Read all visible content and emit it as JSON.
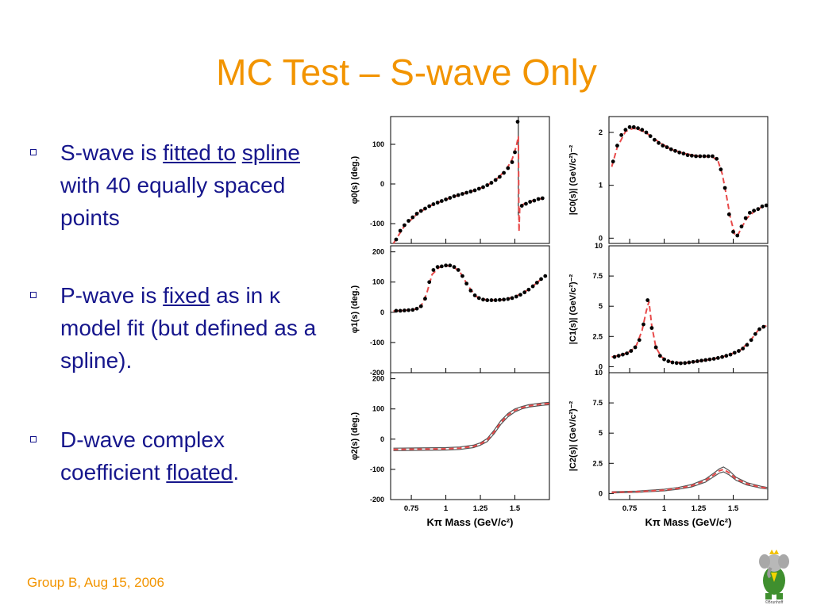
{
  "slide": {
    "title": "MC Test – S-wave Only",
    "footer": "Group B, Aug 15, 2006",
    "bullets": [
      {
        "parts": [
          {
            "t": "S-wave is "
          },
          {
            "t": "fitted to",
            "u": true
          },
          {
            "t": " "
          },
          {
            "t": "spline",
            "u": true
          },
          {
            "t": " with 40 equally spaced points"
          }
        ]
      },
      {
        "parts": [
          {
            "t": "P-wave is "
          },
          {
            "t": "fixed",
            "u": true
          },
          {
            "t": " as in κ model fit (but defined as a spline)."
          }
        ]
      },
      {
        "parts": [
          {
            "t": "D-wave complex coefficient "
          },
          {
            "t": "floated",
            "u": true
          },
          {
            "t": "."
          }
        ]
      }
    ],
    "colors": {
      "title": "#f29400",
      "bullet_text": "#16168c",
      "points": "#000000",
      "fit_line": "#e84a4a",
      "band_line": "#555555"
    },
    "logo": {
      "icon": "elephant-mascot-icon",
      "caption": "©Brunhoff"
    }
  },
  "chart_data": [
    {
      "type": "scatter",
      "panel": "phi0",
      "ylabel": "φ0(s) (deg.)",
      "xlim": [
        0.6,
        1.75
      ],
      "ylim": [
        -150,
        170
      ],
      "xticks": [
        0.75,
        1,
        1.25,
        1.5
      ],
      "xticklabels": [],
      "yticks": [
        -100,
        0,
        100
      ],
      "yticklabels": [
        "-100",
        "0",
        "100"
      ],
      "x": [
        0.64,
        0.67,
        0.7,
        0.73,
        0.76,
        0.79,
        0.82,
        0.85,
        0.88,
        0.91,
        0.94,
        0.97,
        1.0,
        1.03,
        1.06,
        1.09,
        1.12,
        1.15,
        1.18,
        1.21,
        1.24,
        1.27,
        1.3,
        1.33,
        1.36,
        1.39,
        1.42,
        1.45,
        1.48,
        1.5,
        1.52,
        1.55,
        1.58,
        1.61,
        1.64,
        1.67,
        1.7
      ],
      "y": [
        -140,
        -118,
        -104,
        -93,
        -84,
        -75,
        -68,
        -62,
        -56,
        -51,
        -47,
        -43,
        -39,
        -35,
        -31,
        -28,
        -25,
        -22,
        -19,
        -16,
        -12,
        -8,
        -3,
        3,
        10,
        18,
        28,
        40,
        55,
        80,
        157,
        -55,
        -50,
        -45,
        -42,
        -38,
        -36
      ],
      "fit": {
        "x": [
          0.62,
          0.7,
          0.8,
          0.9,
          1.0,
          1.1,
          1.2,
          1.3,
          1.38,
          1.44,
          1.48,
          1.51,
          1.525,
          1.53,
          1.535,
          1.55,
          1.6,
          1.7
        ],
        "y": [
          -150,
          -106,
          -73,
          -53,
          -39,
          -27,
          -17,
          -4,
          16,
          38,
          62,
          95,
          120,
          -120,
          -62,
          -53,
          -45,
          -36
        ]
      },
      "marker": {
        "x": 1.525,
        "from": -80,
        "to": 170
      }
    },
    {
      "type": "scatter",
      "panel": "C0",
      "ylabel": "|C0(s)| (GeV/c²)⁻²",
      "xlim": [
        0.6,
        1.75
      ],
      "ylim": [
        -0.1,
        2.3
      ],
      "xticks": [
        0.75,
        1,
        1.25,
        1.5
      ],
      "xticklabels": [],
      "yticks": [
        0,
        1,
        2
      ],
      "yticklabels": [
        "0",
        "1",
        "2"
      ],
      "x": [
        0.63,
        0.66,
        0.69,
        0.72,
        0.75,
        0.78,
        0.81,
        0.84,
        0.87,
        0.9,
        0.93,
        0.96,
        0.99,
        1.02,
        1.05,
        1.08,
        1.11,
        1.14,
        1.17,
        1.2,
        1.23,
        1.26,
        1.29,
        1.32,
        1.35,
        1.38,
        1.41,
        1.44,
        1.47,
        1.5,
        1.53,
        1.56,
        1.59,
        1.62,
        1.65,
        1.68,
        1.71,
        1.74
      ],
      "y": [
        1.45,
        1.75,
        1.95,
        2.05,
        2.1,
        2.1,
        2.08,
        2.05,
        2.0,
        1.93,
        1.86,
        1.8,
        1.75,
        1.72,
        1.68,
        1.65,
        1.62,
        1.6,
        1.57,
        1.56,
        1.55,
        1.55,
        1.55,
        1.55,
        1.55,
        1.5,
        1.3,
        0.95,
        0.45,
        0.12,
        0.05,
        0.22,
        0.38,
        0.48,
        0.52,
        0.55,
        0.6,
        0.62
      ],
      "fit": {
        "x": [
          0.62,
          0.66,
          0.72,
          0.78,
          0.86,
          0.96,
          1.05,
          1.15,
          1.25,
          1.35,
          1.39,
          1.42,
          1.45,
          1.48,
          1.51,
          1.53,
          1.56,
          1.6,
          1.65,
          1.7,
          1.75
        ],
        "y": [
          1.35,
          1.72,
          2.02,
          2.08,
          2.01,
          1.82,
          1.68,
          1.6,
          1.55,
          1.54,
          1.46,
          1.22,
          0.82,
          0.38,
          0.08,
          0.04,
          0.2,
          0.38,
          0.5,
          0.58,
          0.64
        ]
      }
    },
    {
      "type": "scatter",
      "panel": "phi1",
      "ylabel": "φ1(s) (deg.)",
      "xlim": [
        0.6,
        1.75
      ],
      "ylim": [
        -200,
        220
      ],
      "xticks": [
        0.75,
        1,
        1.25,
        1.5
      ],
      "xticklabels": [],
      "yticks": [
        -200,
        -100,
        0,
        100,
        200
      ],
      "yticklabels": [
        "-200",
        "-100",
        "0",
        "100",
        "200"
      ],
      "x": [
        0.64,
        0.67,
        0.7,
        0.73,
        0.76,
        0.79,
        0.82,
        0.85,
        0.88,
        0.91,
        0.94,
        0.97,
        1.0,
        1.03,
        1.06,
        1.09,
        1.12,
        1.15,
        1.18,
        1.21,
        1.24,
        1.27,
        1.3,
        1.33,
        1.36,
        1.39,
        1.42,
        1.45,
        1.48,
        1.51,
        1.54,
        1.57,
        1.6,
        1.63,
        1.66,
        1.69,
        1.72
      ],
      "y": [
        5,
        5,
        6,
        7,
        8,
        12,
        20,
        45,
        100,
        140,
        150,
        152,
        155,
        155,
        150,
        140,
        120,
        95,
        72,
        56,
        47,
        42,
        40,
        40,
        40,
        41,
        42,
        44,
        47,
        52,
        58,
        66,
        75,
        86,
        98,
        110,
        120
      ],
      "fit": {
        "x": [
          0.62,
          0.7,
          0.78,
          0.82,
          0.86,
          0.9,
          0.95,
          1.0,
          1.05,
          1.1,
          1.16,
          1.22,
          1.3,
          1.4,
          1.5,
          1.6,
          1.72
        ],
        "y": [
          4,
          6,
          10,
          20,
          60,
          125,
          148,
          154,
          152,
          135,
          88,
          52,
          40,
          41,
          51,
          75,
          121
        ]
      }
    },
    {
      "type": "scatter",
      "panel": "C1",
      "ylabel": "|C1(s)| (GeV/c²)⁻²",
      "xlim": [
        0.6,
        1.75
      ],
      "ylim": [
        -0.5,
        10
      ],
      "xticks": [
        0.75,
        1,
        1.25,
        1.5
      ],
      "xticklabels": [],
      "yticks": [
        0,
        2.5,
        5,
        7.5,
        10
      ],
      "yticklabels": [
        "0",
        "2.5",
        "5",
        "7.5",
        "10"
      ],
      "x": [
        0.64,
        0.67,
        0.7,
        0.73,
        0.76,
        0.79,
        0.82,
        0.85,
        0.88,
        0.91,
        0.94,
        0.97,
        1.0,
        1.03,
        1.06,
        1.09,
        1.12,
        1.15,
        1.18,
        1.21,
        1.24,
        1.27,
        1.3,
        1.33,
        1.36,
        1.39,
        1.42,
        1.45,
        1.48,
        1.51,
        1.54,
        1.57,
        1.6,
        1.63,
        1.66,
        1.69,
        1.72
      ],
      "y": [
        0.8,
        0.9,
        1.0,
        1.1,
        1.3,
        1.6,
        2.2,
        3.5,
        5.5,
        3.2,
        1.6,
        0.9,
        0.6,
        0.45,
        0.35,
        0.3,
        0.28,
        0.3,
        0.35,
        0.4,
        0.45,
        0.5,
        0.55,
        0.6,
        0.65,
        0.72,
        0.8,
        0.9,
        1.0,
        1.15,
        1.3,
        1.5,
        1.8,
        2.2,
        2.7,
        3.1,
        3.3
      ],
      "fit": {
        "x": [
          0.62,
          0.7,
          0.76,
          0.8,
          0.84,
          0.87,
          0.89,
          0.91,
          0.94,
          0.98,
          1.05,
          1.15,
          1.25,
          1.35,
          1.45,
          1.55,
          1.62,
          1.68,
          1.74
        ],
        "y": [
          0.8,
          1.0,
          1.3,
          1.8,
          3.0,
          4.6,
          5.4,
          3.4,
          1.6,
          0.8,
          0.4,
          0.3,
          0.45,
          0.62,
          0.9,
          1.35,
          2.1,
          3.0,
          3.4
        ]
      }
    },
    {
      "type": "line",
      "panel": "phi2",
      "ylabel": "φ2(s) (deg.)",
      "xlabel": "Kπ Mass (GeV/c²)",
      "xlim": [
        0.6,
        1.75
      ],
      "ylim": [
        -200,
        220
      ],
      "xticks": [
        0.75,
        1,
        1.25,
        1.5
      ],
      "xticklabels": [
        "0.75",
        "1",
        "1.25",
        "1.5"
      ],
      "yticks": [
        -200,
        -100,
        0,
        100,
        200
      ],
      "yticklabels": [
        "-200",
        "-100",
        "0",
        "100",
        "200"
      ],
      "series": [
        {
          "role": "band-upper",
          "x": [
            0.62,
            0.8,
            1.0,
            1.1,
            1.2,
            1.25,
            1.3,
            1.35,
            1.4,
            1.45,
            1.5,
            1.55,
            1.6,
            1.7,
            1.75
          ],
          "y": [
            -30,
            -29,
            -28,
            -26,
            -20,
            -12,
            2,
            30,
            62,
            85,
            100,
            108,
            114,
            120,
            122
          ]
        },
        {
          "role": "band-lower",
          "x": [
            0.62,
            0.8,
            1.0,
            1.1,
            1.2,
            1.25,
            1.3,
            1.35,
            1.4,
            1.45,
            1.5,
            1.55,
            1.6,
            1.7,
            1.75
          ],
          "y": [
            -38,
            -37,
            -36,
            -34,
            -28,
            -20,
            -8,
            18,
            50,
            74,
            90,
            100,
            106,
            112,
            114
          ]
        },
        {
          "role": "fit",
          "x": [
            0.62,
            0.8,
            1.0,
            1.1,
            1.2,
            1.25,
            1.3,
            1.35,
            1.4,
            1.45,
            1.5,
            1.55,
            1.6,
            1.7,
            1.75
          ],
          "y": [
            -34,
            -33,
            -32,
            -30,
            -24,
            -16,
            -3,
            24,
            56,
            80,
            95,
            104,
            110,
            116,
            118
          ]
        }
      ]
    },
    {
      "type": "line",
      "panel": "C2",
      "ylabel": "|C2(s)| (GeV/c²)⁻²",
      "xlabel": "Kπ Mass (GeV/c²)",
      "xlim": [
        0.6,
        1.75
      ],
      "ylim": [
        -0.5,
        10
      ],
      "xticks": [
        0.75,
        1,
        1.25,
        1.5
      ],
      "xticklabels": [
        "0.75",
        "1",
        "1.25",
        "1.5"
      ],
      "yticks": [
        0,
        2.5,
        5,
        7.5,
        10
      ],
      "yticklabels": [
        "0",
        "2.5",
        "5",
        "7.5",
        "10"
      ],
      "series": [
        {
          "role": "band-upper",
          "x": [
            0.62,
            0.8,
            1.0,
            1.1,
            1.2,
            1.3,
            1.36,
            1.4,
            1.43,
            1.47,
            1.52,
            1.6,
            1.7,
            1.75
          ],
          "y": [
            0.15,
            0.2,
            0.35,
            0.5,
            0.75,
            1.2,
            1.7,
            2.05,
            2.2,
            1.9,
            1.35,
            0.9,
            0.6,
            0.5
          ]
        },
        {
          "role": "band-lower",
          "x": [
            0.62,
            0.8,
            1.0,
            1.1,
            1.2,
            1.3,
            1.36,
            1.4,
            1.43,
            1.47,
            1.52,
            1.6,
            1.7,
            1.75
          ],
          "y": [
            0.05,
            0.1,
            0.22,
            0.35,
            0.55,
            0.95,
            1.4,
            1.7,
            1.8,
            1.55,
            1.1,
            0.7,
            0.45,
            0.38
          ]
        },
        {
          "role": "fit",
          "x": [
            0.62,
            0.8,
            1.0,
            1.1,
            1.2,
            1.3,
            1.36,
            1.4,
            1.43,
            1.47,
            1.52,
            1.6,
            1.7,
            1.75
          ],
          "y": [
            0.1,
            0.15,
            0.28,
            0.42,
            0.65,
            1.08,
            1.55,
            1.88,
            2.0,
            1.72,
            1.22,
            0.8,
            0.52,
            0.44
          ]
        }
      ]
    }
  ]
}
